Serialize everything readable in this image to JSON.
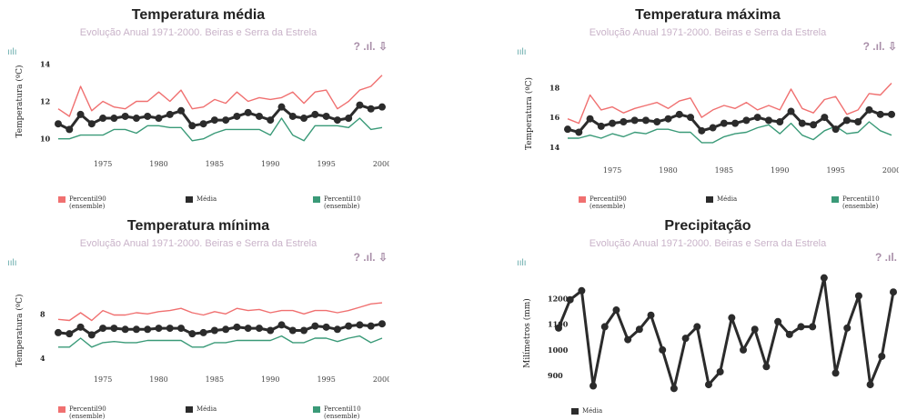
{
  "panels": [
    {
      "title": "Temperatura média",
      "subtitle": "Evolução Anual 1971-2000. Beiras e Serra da Estrela",
      "tools": "? .ıl. ⇩",
      "ylabel": "Temperatura (ºC)",
      "legend": [
        {
          "label": "Percentil90",
          "sub": "(ensemble)",
          "color": "#f07070"
        },
        {
          "label": "Média",
          "sub": "",
          "color": "#2b2b2b"
        },
        {
          "label": "Percentil10",
          "sub": "(ensemble)",
          "color": "#3a9a78"
        }
      ]
    },
    {
      "title": "Temperatura máxima",
      "subtitle": "Evolução Anual 1971-2000. Beiras e Serra da Estrela",
      "tools": "? .ıl. ⇩",
      "ylabel": "Temperatura (ºC)",
      "legend": [
        {
          "label": "Percentil90",
          "sub": "(ensemble)",
          "color": "#f07070"
        },
        {
          "label": "Média",
          "sub": "",
          "color": "#2b2b2b"
        },
        {
          "label": "Percentil10",
          "sub": "(ensemble)",
          "color": "#3a9a78"
        }
      ]
    },
    {
      "title": "Temperatura mínima",
      "subtitle": "Evolução Anual 1971-2000. Beiras e Serra da Estrela",
      "tools": "? .ıl. ⇩",
      "ylabel": "Temperatura (ºC)",
      "legend": [
        {
          "label": "Percentil90",
          "sub": "(ensemble)",
          "color": "#f07070"
        },
        {
          "label": "Média",
          "sub": "",
          "color": "#2b2b2b"
        },
        {
          "label": "Percentil10",
          "sub": "(ensemble)",
          "color": "#3a9a78"
        }
      ]
    },
    {
      "title": "Precipitação",
      "subtitle": "Evolução Anual 1971-2000. Beiras e Serra da Estrela",
      "tools": "? .ıl.",
      "ylabel": "Milímetros (mm)",
      "legend": [
        {
          "label": "Média",
          "sub": "",
          "color": "#2b2b2b"
        }
      ]
    }
  ],
  "logo_glyph": "ıılı",
  "chart_data": [
    {
      "type": "line",
      "title": "Temperatura média",
      "ylabel": "Temperatura (ºC)",
      "x": [
        1971,
        1972,
        1973,
        1974,
        1975,
        1976,
        1977,
        1978,
        1979,
        1980,
        1981,
        1982,
        1983,
        1984,
        1985,
        1986,
        1987,
        1988,
        1989,
        1990,
        1991,
        1992,
        1993,
        1994,
        1995,
        1996,
        1997,
        1998,
        1999,
        2000
      ],
      "xticks": [
        1975,
        1980,
        1985,
        1990,
        1995,
        2000
      ],
      "yticks": [
        10,
        12,
        14
      ],
      "ylim": [
        9.5,
        14.5
      ],
      "series": [
        {
          "name": "Percentil90 (ensemble)",
          "color": "#f07070",
          "markers": false,
          "values": [
            11.6,
            11.2,
            12.8,
            11.5,
            12.0,
            11.7,
            11.6,
            12.0,
            12.0,
            12.5,
            12.0,
            12.6,
            11.6,
            11.7,
            12.1,
            11.9,
            12.5,
            12.0,
            12.2,
            12.1,
            12.2,
            12.5,
            11.9,
            12.5,
            12.6,
            11.6,
            12.0,
            12.6,
            12.8,
            13.4
          ]
        },
        {
          "name": "Média",
          "color": "#2b2b2b",
          "markers": true,
          "values": [
            10.8,
            10.5,
            11.3,
            10.8,
            11.1,
            11.1,
            11.2,
            11.1,
            11.2,
            11.1,
            11.3,
            11.5,
            10.7,
            10.8,
            11.0,
            11.0,
            11.2,
            11.4,
            11.2,
            11.0,
            11.7,
            11.2,
            11.1,
            11.3,
            11.2,
            11.0,
            11.1,
            11.8,
            11.6,
            11.7
          ]
        },
        {
          "name": "Percentil10 (ensemble)",
          "color": "#3a9a78",
          "markers": false,
          "values": [
            10.0,
            10.0,
            10.2,
            10.2,
            10.2,
            10.5,
            10.5,
            10.3,
            10.7,
            10.7,
            10.6,
            10.6,
            9.9,
            10.0,
            10.3,
            10.5,
            10.5,
            10.5,
            10.5,
            10.2,
            11.1,
            10.2,
            9.9,
            10.7,
            10.7,
            10.7,
            10.6,
            11.1,
            10.5,
            10.6
          ]
        }
      ]
    },
    {
      "type": "line",
      "title": "Temperatura máxima",
      "ylabel": "Temperatura (ºC)",
      "x": [
        1971,
        1972,
        1973,
        1974,
        1975,
        1976,
        1977,
        1978,
        1979,
        1980,
        1981,
        1982,
        1983,
        1984,
        1985,
        1986,
        1987,
        1988,
        1989,
        1990,
        1991,
        1992,
        1993,
        1994,
        1995,
        1996,
        1997,
        1998,
        1999,
        2000
      ],
      "xticks": [
        1975,
        1980,
        1985,
        1990,
        1995,
        2000
      ],
      "yticks": [
        14,
        16,
        18
      ],
      "ylim": [
        13.5,
        19
      ],
      "series": [
        {
          "name": "Percentil90 (ensemble)",
          "color": "#f07070",
          "markers": false,
          "values": [
            15.9,
            15.6,
            17.5,
            16.5,
            16.7,
            16.3,
            16.6,
            16.8,
            17.0,
            16.6,
            17.1,
            17.3,
            16.0,
            16.5,
            16.8,
            16.6,
            17.0,
            16.5,
            16.8,
            16.5,
            17.9,
            16.6,
            16.3,
            17.2,
            17.4,
            16.2,
            16.5,
            17.6,
            17.5,
            18.3
          ]
        },
        {
          "name": "Média",
          "color": "#2b2b2b",
          "markers": true,
          "values": [
            15.2,
            15.0,
            15.9,
            15.4,
            15.6,
            15.7,
            15.8,
            15.8,
            15.7,
            15.9,
            16.2,
            16.0,
            15.1,
            15.3,
            15.6,
            15.6,
            15.8,
            16.0,
            15.8,
            15.7,
            16.4,
            15.6,
            15.5,
            16.0,
            15.2,
            15.8,
            15.7,
            16.5,
            16.2,
            16.2
          ]
        },
        {
          "name": "Percentil10 (ensemble)",
          "color": "#3a9a78",
          "markers": false,
          "values": [
            14.6,
            14.6,
            14.8,
            14.6,
            14.9,
            14.7,
            15.0,
            14.9,
            15.2,
            15.2,
            15.0,
            15.0,
            14.3,
            14.3,
            14.7,
            14.9,
            15.0,
            15.3,
            15.5,
            14.9,
            15.6,
            14.8,
            14.5,
            15.1,
            15.4,
            14.9,
            15.0,
            15.7,
            15.1,
            14.8
          ]
        }
      ]
    },
    {
      "type": "line",
      "title": "Temperatura mínima",
      "ylabel": "Temperatura (ºC)",
      "x": [
        1971,
        1972,
        1973,
        1974,
        1975,
        1976,
        1977,
        1978,
        1979,
        1980,
        1981,
        1982,
        1983,
        1984,
        1985,
        1986,
        1987,
        1988,
        1989,
        1990,
        1991,
        1992,
        1993,
        1994,
        1995,
        1996,
        1997,
        1998,
        1999,
        2000
      ],
      "xticks": [
        1975,
        1980,
        1985,
        1990,
        1995,
        2000
      ],
      "yticks": [
        4,
        8
      ],
      "ylim": [
        3.5,
        9.5
      ],
      "series": [
        {
          "name": "Percentil90 (ensemble)",
          "color": "#f07070",
          "markers": false,
          "values": [
            7.5,
            7.4,
            8.1,
            7.4,
            8.3,
            7.9,
            7.9,
            8.1,
            8.0,
            8.2,
            8.3,
            8.5,
            8.1,
            7.9,
            8.2,
            8.0,
            8.5,
            8.3,
            8.4,
            8.1,
            8.3,
            8.3,
            8.0,
            8.3,
            8.3,
            8.1,
            8.3,
            8.6,
            8.9,
            9.0
          ]
        },
        {
          "name": "Média",
          "color": "#2b2b2b",
          "markers": true,
          "values": [
            6.3,
            6.2,
            6.8,
            6.1,
            6.7,
            6.7,
            6.6,
            6.6,
            6.6,
            6.7,
            6.7,
            6.7,
            6.2,
            6.3,
            6.5,
            6.6,
            6.8,
            6.7,
            6.7,
            6.5,
            7.0,
            6.5,
            6.5,
            6.9,
            6.8,
            6.6,
            6.9,
            7.0,
            6.9,
            7.1
          ]
        },
        {
          "name": "Percentil10 (ensemble)",
          "color": "#3a9a78",
          "markers": false,
          "values": [
            5.0,
            5.0,
            5.8,
            5.0,
            5.4,
            5.5,
            5.4,
            5.4,
            5.6,
            5.6,
            5.6,
            5.6,
            5.0,
            5.0,
            5.4,
            5.4,
            5.6,
            5.6,
            5.6,
            5.6,
            6.0,
            5.4,
            5.4,
            5.8,
            5.8,
            5.5,
            5.8,
            6.0,
            5.4,
            5.8
          ]
        }
      ]
    },
    {
      "type": "line",
      "title": "Precipitação",
      "ylabel": "Milímetros (mm)",
      "x": [
        1971,
        1972,
        1973,
        1974,
        1975,
        1976,
        1977,
        1978,
        1979,
        1980,
        1981,
        1982,
        1983,
        1984,
        1985,
        1986,
        1987,
        1988,
        1989,
        1990,
        1991,
        1992,
        1993,
        1994,
        1995,
        1996,
        1997,
        1998,
        1999,
        2000
      ],
      "xticks": [
        1975,
        1980,
        1985,
        1990,
        1995,
        2000
      ],
      "yticks": [
        900,
        1000,
        1100,
        1200
      ],
      "ylim": [
        830,
        1300
      ],
      "series": [
        {
          "name": "Média",
          "color": "#2b2b2b",
          "markers": true,
          "values": [
            1085,
            1195,
            1230,
            860,
            1090,
            1155,
            1040,
            1080,
            1135,
            1000,
            850,
            1045,
            1090,
            865,
            915,
            1125,
            1000,
            1080,
            935,
            1110,
            1060,
            1090,
            1090,
            1280,
            910,
            1085,
            1210,
            865,
            975,
            1225
          ]
        }
      ]
    }
  ]
}
